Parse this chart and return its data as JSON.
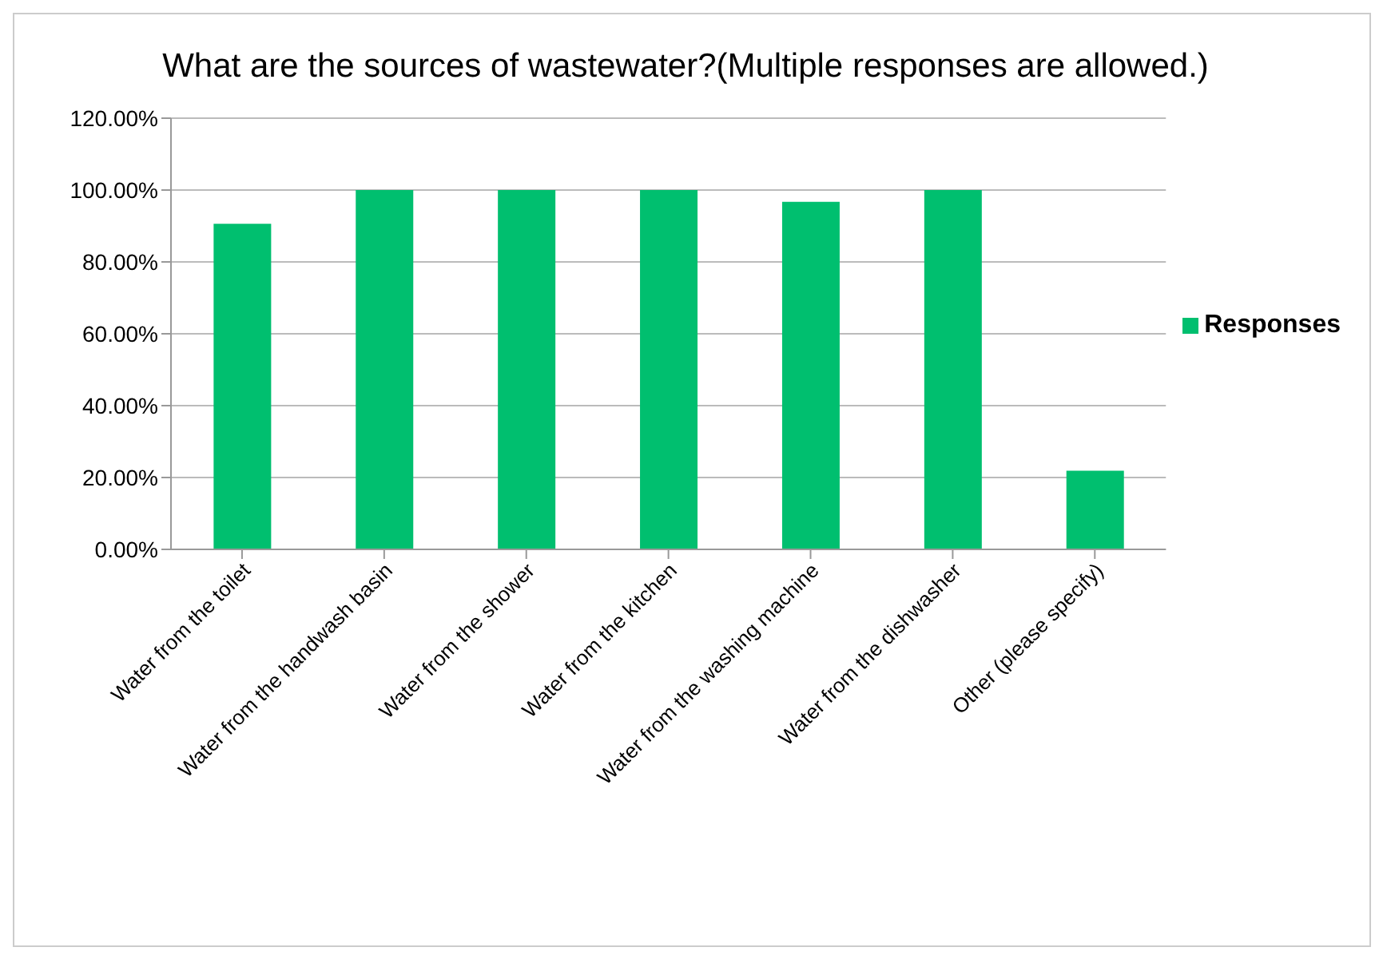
{
  "chart_data": {
    "type": "bar",
    "title": "What are the sources of wastewater?(Multiple responses are allowed.)",
    "categories": [
      "Water from the toilet",
      "Water from the handwash basin",
      "Water from the shower",
      "Water from the kitchen",
      "Water from the washing machine",
      "Water from the dishwasher",
      "Other (please specify)"
    ],
    "series": [
      {
        "name": "Responses",
        "color": "#00bf6f",
        "values": [
          90.6,
          100,
          100,
          100,
          96.7,
          100,
          21.9
        ]
      }
    ],
    "ylim": [
      0,
      120
    ],
    "yticks": [
      {
        "value": 0,
        "label": "0.00%"
      },
      {
        "value": 20,
        "label": "20.00%"
      },
      {
        "value": 40,
        "label": "40.00%"
      },
      {
        "value": 60,
        "label": "60.00%"
      },
      {
        "value": 80,
        "label": "80.00%"
      },
      {
        "value": 100,
        "label": "100.00%"
      },
      {
        "value": 120,
        "label": "120.00%"
      }
    ],
    "grid": "y",
    "legend": "right"
  }
}
